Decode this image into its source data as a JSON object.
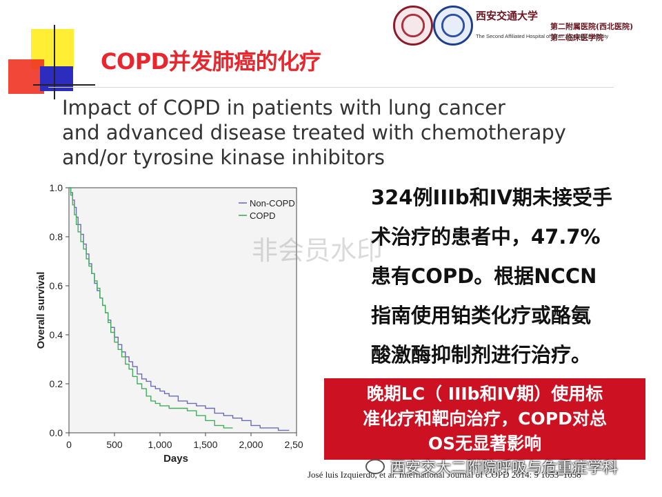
{
  "title": "COPD并发肺癌的化疗",
  "hospital": {
    "name_cn": "西安交通大学",
    "dept_cn_1": "第二附属医院(西北医院)",
    "dept_cn_2": "第二临床医学院",
    "name_en": "The Second Affiliated Hospital of Xi'an Jiaotong University"
  },
  "paper_title": {
    "line1": "Impact of COPD in patients with lung cancer",
    "line2": "and advanced disease treated with chemotherapy",
    "line3": "and/or tyrosine kinase inhibitors"
  },
  "summary": {
    "lines": [
      "324例IIIb和IV期未接受手",
      "术治疗的患者中，47.7%",
      "患有COPD。根据NCCN",
      "指南使用铂类化疗或酪氨",
      "酸激酶抑制剂进行治疗。"
    ]
  },
  "conclusion": {
    "lines": [
      "晚期LC（ IIIb和IV期）使用标",
      "准化疗和靶向治疗，COPD对总",
      "OS无显著影响"
    ]
  },
  "citation": "José luis Izquierdo, et al. International Journal of COPD 2014: 9 1053–1058",
  "watermark": "非会员水印",
  "wechat_watermark": "西安交大二附院呼吸与危重症学科",
  "chart_data": {
    "type": "line",
    "xlabel": "Days",
    "ylabel": "Overall survival",
    "xlim": [
      0,
      2500
    ],
    "ylim": [
      0,
      1.0
    ],
    "x_ticks": [
      0,
      500,
      1000,
      1500,
      2000,
      2500
    ],
    "x_tick_labels": [
      "0",
      "500",
      "1,000",
      "1,500",
      "2,000",
      "2,500"
    ],
    "y_ticks": [
      0.0,
      0.2,
      0.4,
      0.6,
      0.8,
      1.0
    ],
    "y_tick_labels": [
      "0.0",
      "0.2",
      "0.4",
      "0.6",
      "0.8",
      "1.0"
    ],
    "legend_position": "top-right",
    "series": [
      {
        "name": "Non-COPD",
        "color": "#6a6ab8",
        "x": [
          0,
          20,
          40,
          60,
          80,
          100,
          130,
          160,
          190,
          220,
          250,
          280,
          310,
          340,
          370,
          400,
          430,
          460,
          500,
          540,
          580,
          620,
          660,
          700,
          750,
          800,
          850,
          900,
          950,
          1000,
          1050,
          1100,
          1200,
          1300,
          1400,
          1500,
          1600,
          1700,
          1800,
          1900,
          2000,
          2100,
          2200,
          2300,
          2420
        ],
        "y": [
          1.0,
          0.98,
          0.95,
          0.92,
          0.88,
          0.85,
          0.81,
          0.77,
          0.73,
          0.69,
          0.65,
          0.61,
          0.58,
          0.55,
          0.52,
          0.49,
          0.46,
          0.43,
          0.39,
          0.36,
          0.33,
          0.31,
          0.29,
          0.27,
          0.24,
          0.22,
          0.21,
          0.19,
          0.18,
          0.17,
          0.16,
          0.15,
          0.13,
          0.12,
          0.11,
          0.1,
          0.08,
          0.07,
          0.06,
          0.05,
          0.03,
          0.02,
          0.02,
          0.01,
          0.01
        ]
      },
      {
        "name": "COPD",
        "color": "#3fae5a",
        "x": [
          0,
          20,
          40,
          60,
          80,
          100,
          130,
          160,
          190,
          220,
          250,
          280,
          310,
          340,
          370,
          400,
          430,
          460,
          500,
          540,
          580,
          620,
          660,
          700,
          750,
          800,
          850,
          900,
          950,
          1000,
          1100,
          1200,
          1300,
          1400,
          1500,
          1600,
          1700,
          1800
        ],
        "y": [
          1.0,
          0.97,
          0.93,
          0.89,
          0.85,
          0.82,
          0.78,
          0.75,
          0.71,
          0.68,
          0.65,
          0.62,
          0.59,
          0.55,
          0.52,
          0.49,
          0.45,
          0.41,
          0.37,
          0.34,
          0.31,
          0.28,
          0.26,
          0.23,
          0.2,
          0.18,
          0.15,
          0.13,
          0.12,
          0.11,
          0.1,
          0.1,
          0.09,
          0.07,
          0.05,
          0.03,
          0.02,
          0.02
        ]
      }
    ]
  }
}
